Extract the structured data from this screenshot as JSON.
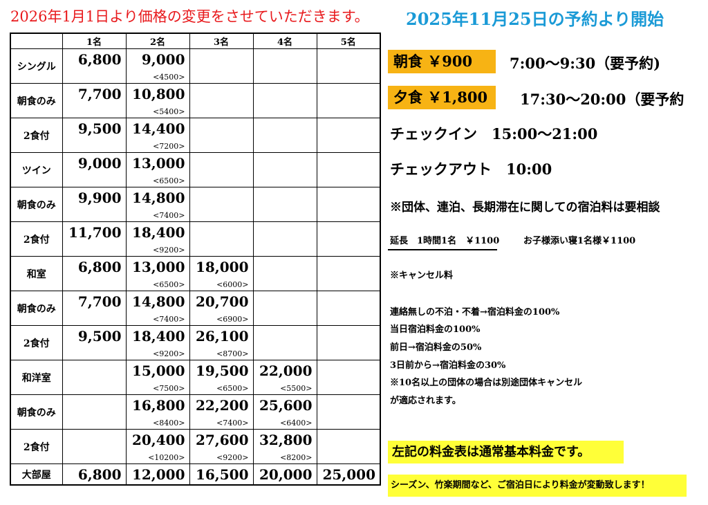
{
  "header": {
    "red_notice": "2026年1月1日より価格の変更をさせていただきます。",
    "blue_notice": "2025年11月25日の予約より開始"
  },
  "table": {
    "columns": [
      "",
      "1名",
      "2名",
      "3名",
      "4名",
      "5名"
    ],
    "rows": [
      {
        "label": "シングル",
        "cells": [
          {
            "p": "6,800"
          },
          {
            "p": "9,000",
            "s": "<4500>"
          },
          {},
          {},
          {}
        ]
      },
      {
        "label": "朝食のみ",
        "cells": [
          {
            "p": "7,700"
          },
          {
            "p": "10,800",
            "s": "<5400>"
          },
          {},
          {},
          {}
        ]
      },
      {
        "label": "2食付",
        "cells": [
          {
            "p": "9,500"
          },
          {
            "p": "14,400",
            "s": "<7200>"
          },
          {},
          {},
          {}
        ]
      },
      {
        "label": "ツイン",
        "cells": [
          {
            "p": "9,000"
          },
          {
            "p": "13,000",
            "s": "<6500>"
          },
          {},
          {},
          {}
        ]
      },
      {
        "label": "朝食のみ",
        "cells": [
          {
            "p": "9,900"
          },
          {
            "p": "14,800",
            "s": "<7400>"
          },
          {},
          {},
          {}
        ]
      },
      {
        "label": "2食付",
        "cells": [
          {
            "p": "11,700"
          },
          {
            "p": "18,400",
            "s": "<9200>"
          },
          {},
          {},
          {}
        ]
      },
      {
        "label": "和室",
        "cells": [
          {
            "p": "6,800"
          },
          {
            "p": "13,000",
            "s": "<6500>"
          },
          {
            "p": "18,000",
            "s": "<6000>"
          },
          {},
          {}
        ]
      },
      {
        "label": "朝食のみ",
        "cells": [
          {
            "p": "7,700"
          },
          {
            "p": "14,800",
            "s": "<7400>"
          },
          {
            "p": "20,700",
            "s": "<6900>"
          },
          {},
          {}
        ]
      },
      {
        "label": "2食付",
        "cells": [
          {
            "p": "9,500"
          },
          {
            "p": "18,400",
            "s": "<9200>"
          },
          {
            "p": "26,100",
            "s": "<8700>"
          },
          {},
          {}
        ]
      },
      {
        "label": "和洋室",
        "cells": [
          {},
          {
            "p": "15,000",
            "s": "<7500>"
          },
          {
            "p": "19,500",
            "s": "<6500>"
          },
          {
            "p": "22,000",
            "s": "<5500>"
          },
          {}
        ]
      },
      {
        "label": "朝食のみ",
        "cells": [
          {},
          {
            "p": "16,800",
            "s": "<8400>"
          },
          {
            "p": "22,200",
            "s": "<7400>"
          },
          {
            "p": "25,600",
            "s": "<6400>"
          },
          {}
        ]
      },
      {
        "label": "2食付",
        "cells": [
          {},
          {
            "p": "20,400",
            "s": "<10200>"
          },
          {
            "p": "27,600",
            "s": "<9200>"
          },
          {
            "p": "32,800",
            "s": "<8200>"
          },
          {}
        ]
      },
      {
        "label": "大部屋",
        "cells": [
          {
            "p": "6,800"
          },
          {
            "p": "12,000"
          },
          {
            "p": "16,500"
          },
          {
            "p": "20,000"
          },
          {
            "p": "25,000"
          }
        ]
      }
    ]
  },
  "info": {
    "breakfast_label": "朝食 ￥900",
    "breakfast_time": "7:00～9:30（要予約)",
    "dinner_label": "夕食 ￥1,800",
    "dinner_time": "17:30～20:00（要予約",
    "checkin": "チェックイン　15:00～21:00",
    "checkout": "チェックアウト　10:00",
    "group_note": "※団体、連泊、長期滞在に関しての宿泊料は要相談",
    "extension": "延長　1時間1名　￥1100",
    "child_bed": "お子様添い寝1名様￥1100",
    "cancel_title": "※キャンセル料",
    "cancel_lines": [
      "連絡無しの不泊・不着→宿泊料金の100%",
      "当日宿泊料金の100%",
      "前日→宿泊料金の50%",
      "3日前から→宿泊料金の30%",
      "※10名以上の団体の場合は別途団体キャンセル",
      "が適応されます。"
    ],
    "basic_rate_note": "左記の料金表は通常基本料金です。",
    "season_note": "シーズン、竹楽期間など、ご宿泊日により料金が変動致します！"
  },
  "colors": {
    "red": "#e8191c",
    "blue": "#1a9ad6",
    "orange": "#f7b314",
    "yellow": "#ffff38"
  }
}
